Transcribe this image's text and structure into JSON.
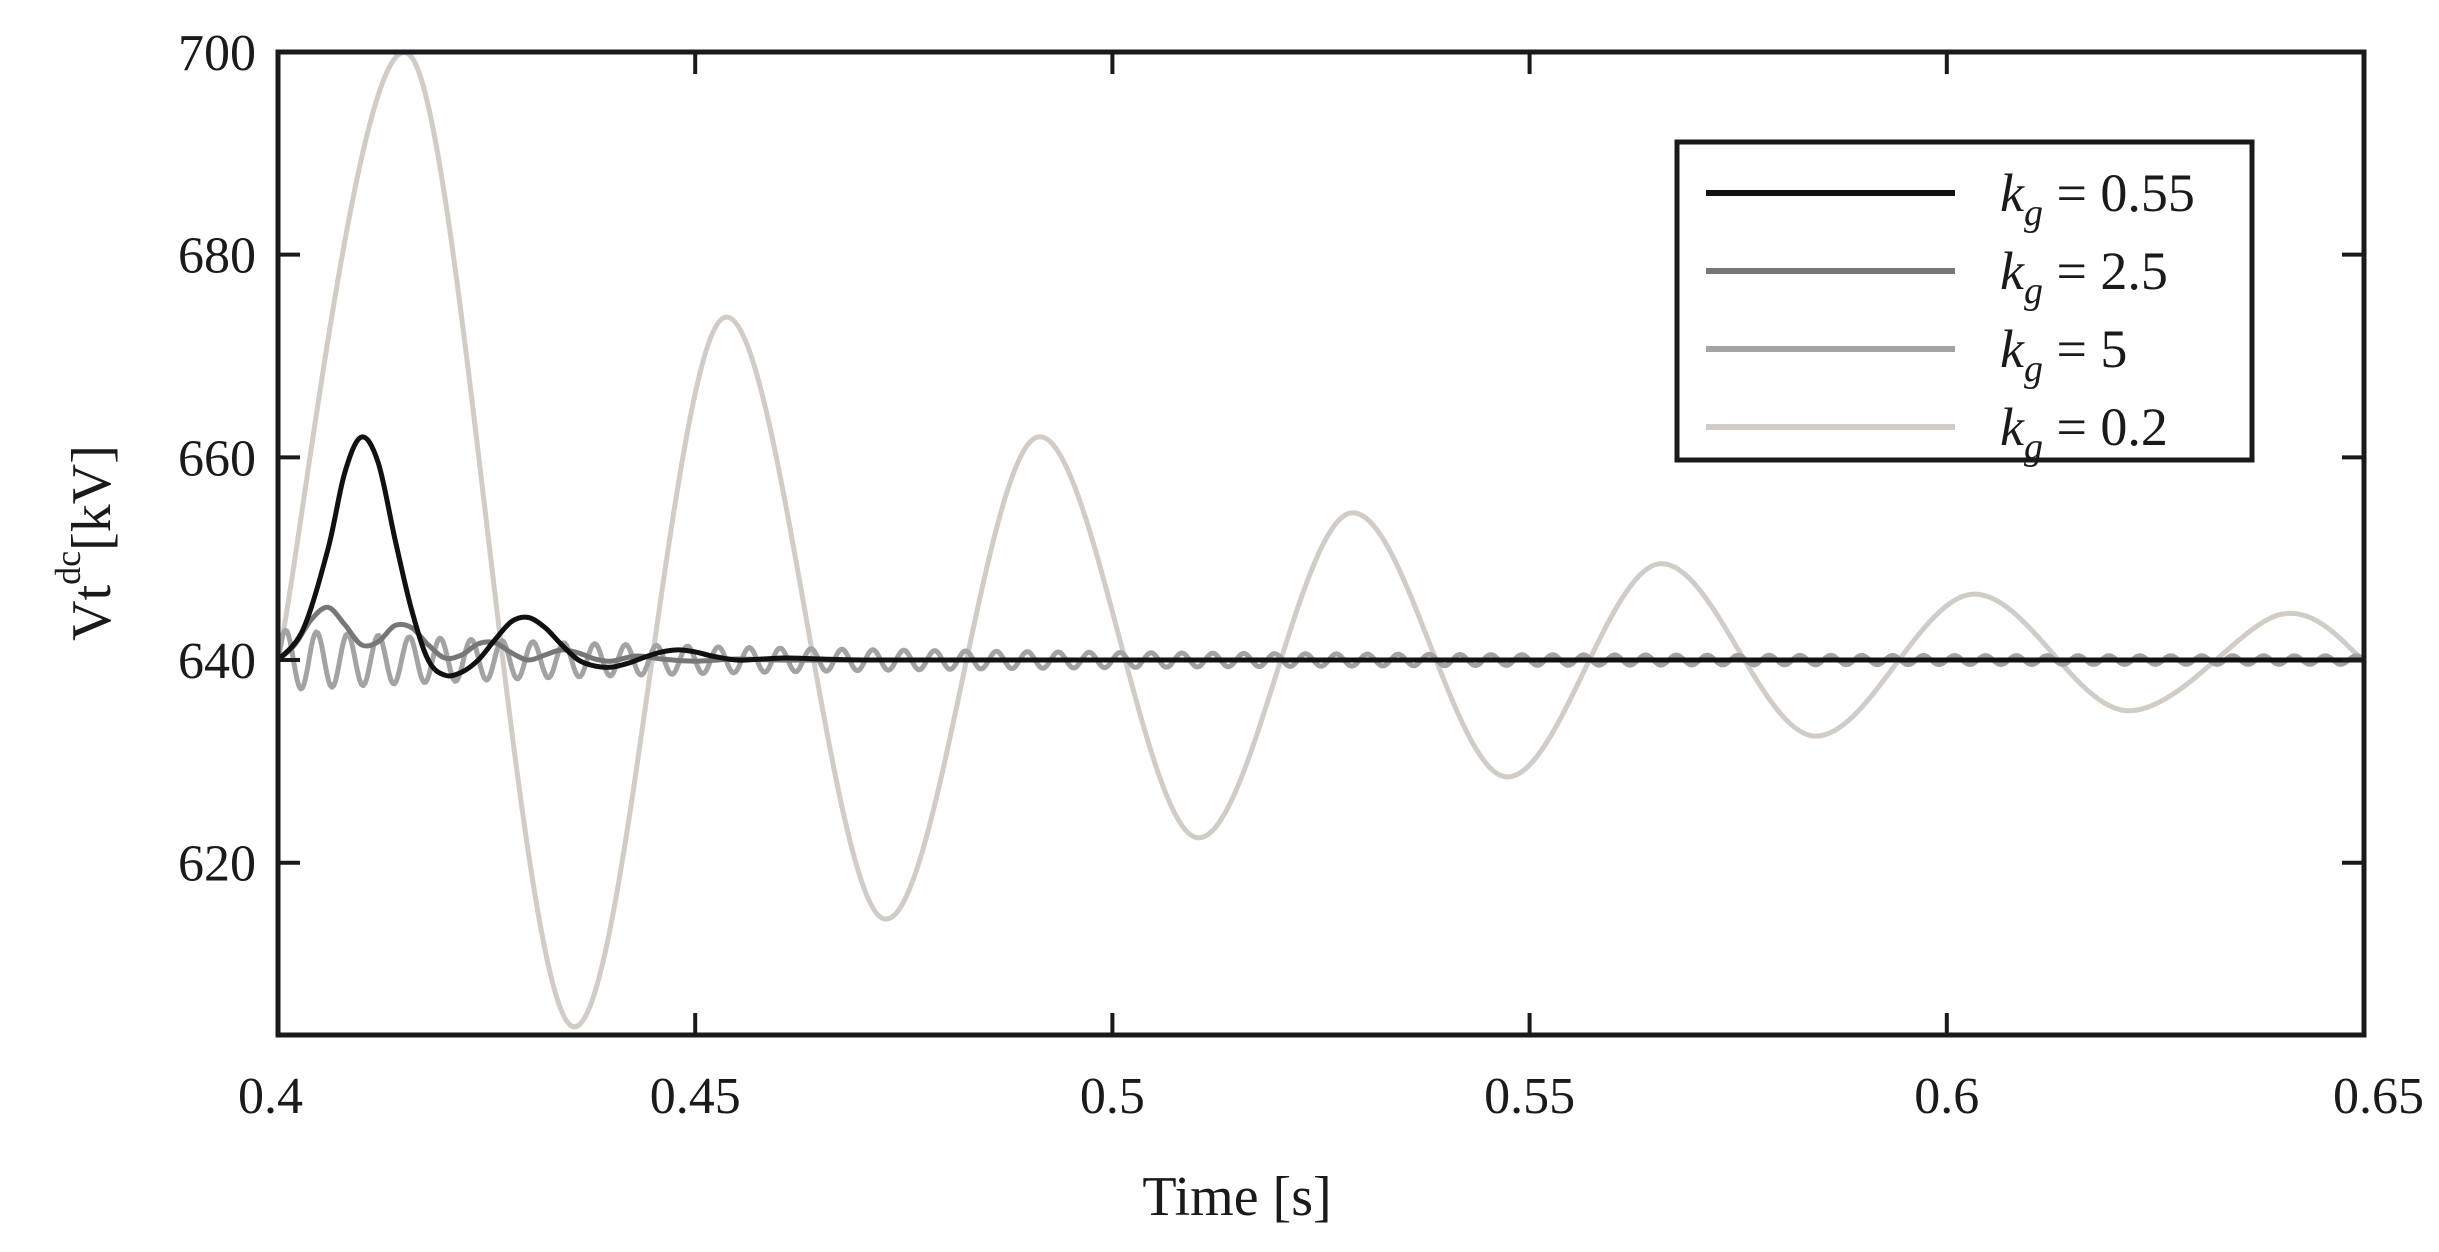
{
  "chart_data": {
    "type": "line",
    "title": "",
    "xlabel": "Time [s]",
    "ylabel": {
      "base": "Vt",
      "superscript": "dc",
      "unit": "[kV]"
    },
    "xlim": [
      0.4,
      0.65
    ],
    "ylim": [
      603,
      700
    ],
    "xticks": [
      0.4,
      0.45,
      0.5,
      0.55,
      0.6,
      0.65
    ],
    "xtick_labels": [
      "0.4",
      "0.45",
      "0.5",
      "0.55",
      "0.6",
      "0.65"
    ],
    "yticks": [
      620,
      640,
      660,
      680,
      700
    ],
    "ytick_labels": [
      "620",
      "640",
      "660",
      "680",
      "700"
    ],
    "grid": false,
    "legend_position": "top-right",
    "series": [
      {
        "name": "k_g = 0.55",
        "legend": {
          "var": "k",
          "sub": "g",
          "rest": " = 0.55"
        },
        "color": "#111111",
        "x": [
          0.4,
          0.403,
          0.406,
          0.408,
          0.41,
          0.412,
          0.414,
          0.416,
          0.418,
          0.42,
          0.422,
          0.424,
          0.426,
          0.428,
          0.43,
          0.432,
          0.434,
          0.436,
          0.438,
          0.44,
          0.442,
          0.444,
          0.446,
          0.448,
          0.45,
          0.452,
          0.455,
          0.458,
          0.461,
          0.465,
          0.47,
          0.48,
          0.5,
          0.55,
          0.6,
          0.65
        ],
        "y": [
          640.0,
          643.0,
          651.0,
          658.5,
          662.0,
          659.5,
          652.0,
          645.0,
          640.0,
          638.5,
          638.8,
          640.0,
          642.0,
          643.8,
          644.2,
          643.2,
          641.5,
          640.0,
          639.4,
          639.3,
          639.7,
          640.3,
          640.8,
          641.0,
          640.8,
          640.4,
          640.0,
          640.1,
          640.2,
          640.1,
          640.0,
          640.0,
          640.0,
          640.0,
          640.0,
          640.0
        ]
      },
      {
        "name": "k_g = 2.5",
        "legend": {
          "var": "k",
          "sub": "g",
          "rest": " = 2.5"
        },
        "color": "#777777",
        "x": [
          0.4,
          0.402,
          0.404,
          0.406,
          0.408,
          0.41,
          0.412,
          0.414,
          0.416,
          0.418,
          0.42,
          0.422,
          0.424,
          0.426,
          0.428,
          0.43,
          0.432,
          0.434,
          0.436,
          0.438,
          0.44,
          0.443,
          0.446,
          0.45,
          0.455,
          0.46,
          0.47,
          0.5,
          0.55,
          0.6,
          0.65
        ],
        "y": [
          640.0,
          641.5,
          644.0,
          645.2,
          643.5,
          641.5,
          641.8,
          643.4,
          643.2,
          641.5,
          640.2,
          640.5,
          641.6,
          641.7,
          640.7,
          640.0,
          640.5,
          641.0,
          640.7,
          640.1,
          639.9,
          640.4,
          640.1,
          639.9,
          640.1,
          640.0,
          640.0,
          640.0,
          640.0,
          640.0,
          640.0
        ]
      },
      {
        "name": "k_g = 5",
        "legend": {
          "var": "k",
          "sub": "g",
          "rest": " = 5"
        },
        "color": "#a3a3a3",
        "oscillation": {
          "base": 640,
          "amp0": 3.0,
          "amp_end": 0.4,
          "decay": 20,
          "freq": 270,
          "x0": 0.4
        }
      },
      {
        "name": "k_g = 0.2",
        "legend": {
          "var": "k",
          "sub": "g",
          "rest": " = 0.2"
        },
        "color": "#d1ccc6",
        "x": [
          0.4,
          0.416,
          0.435,
          0.4535,
          0.4725,
          0.491,
          0.51,
          0.5285,
          0.547,
          0.5655,
          0.584,
          0.603,
          0.6215,
          0.64,
          0.65
        ],
        "y": [
          640.0,
          699.5,
          604.0,
          673.8,
          614.5,
          662.0,
          622.5,
          654.5,
          628.5,
          649.5,
          632.5,
          646.5,
          635.0,
          644.5,
          640.0
        ]
      }
    ]
  }
}
